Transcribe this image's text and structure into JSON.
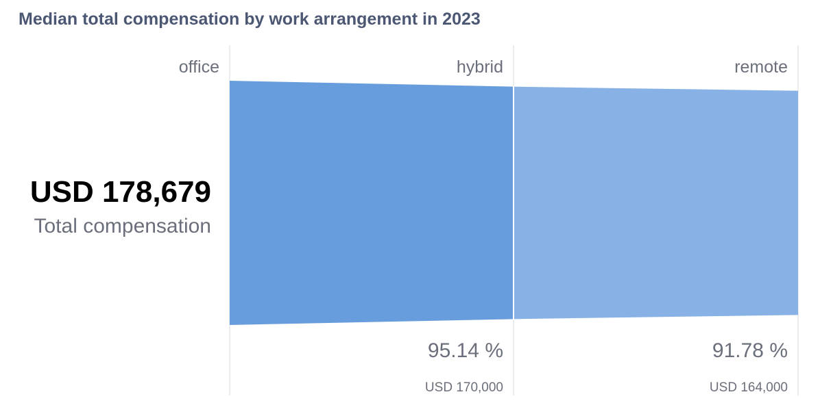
{
  "chart_data": {
    "type": "funnel",
    "title": "Median total compensation by work arrangement in 2023",
    "metric_label": "Total compensation",
    "headline_value": "USD 178,679",
    "stages": [
      {
        "name": "office",
        "value": 178679,
        "value_label": "USD 178,679",
        "percent_label": ""
      },
      {
        "name": "hybrid",
        "value": 170000,
        "value_label": "USD 170,000",
        "percent_label": "95.14 %"
      },
      {
        "name": "remote",
        "value": 164000,
        "value_label": "USD 164,000",
        "percent_label": "91.78 %"
      }
    ],
    "colors": {
      "primary": "#679ddd",
      "secondary": "#88b2e6",
      "divider": "#e3e5ea"
    }
  }
}
